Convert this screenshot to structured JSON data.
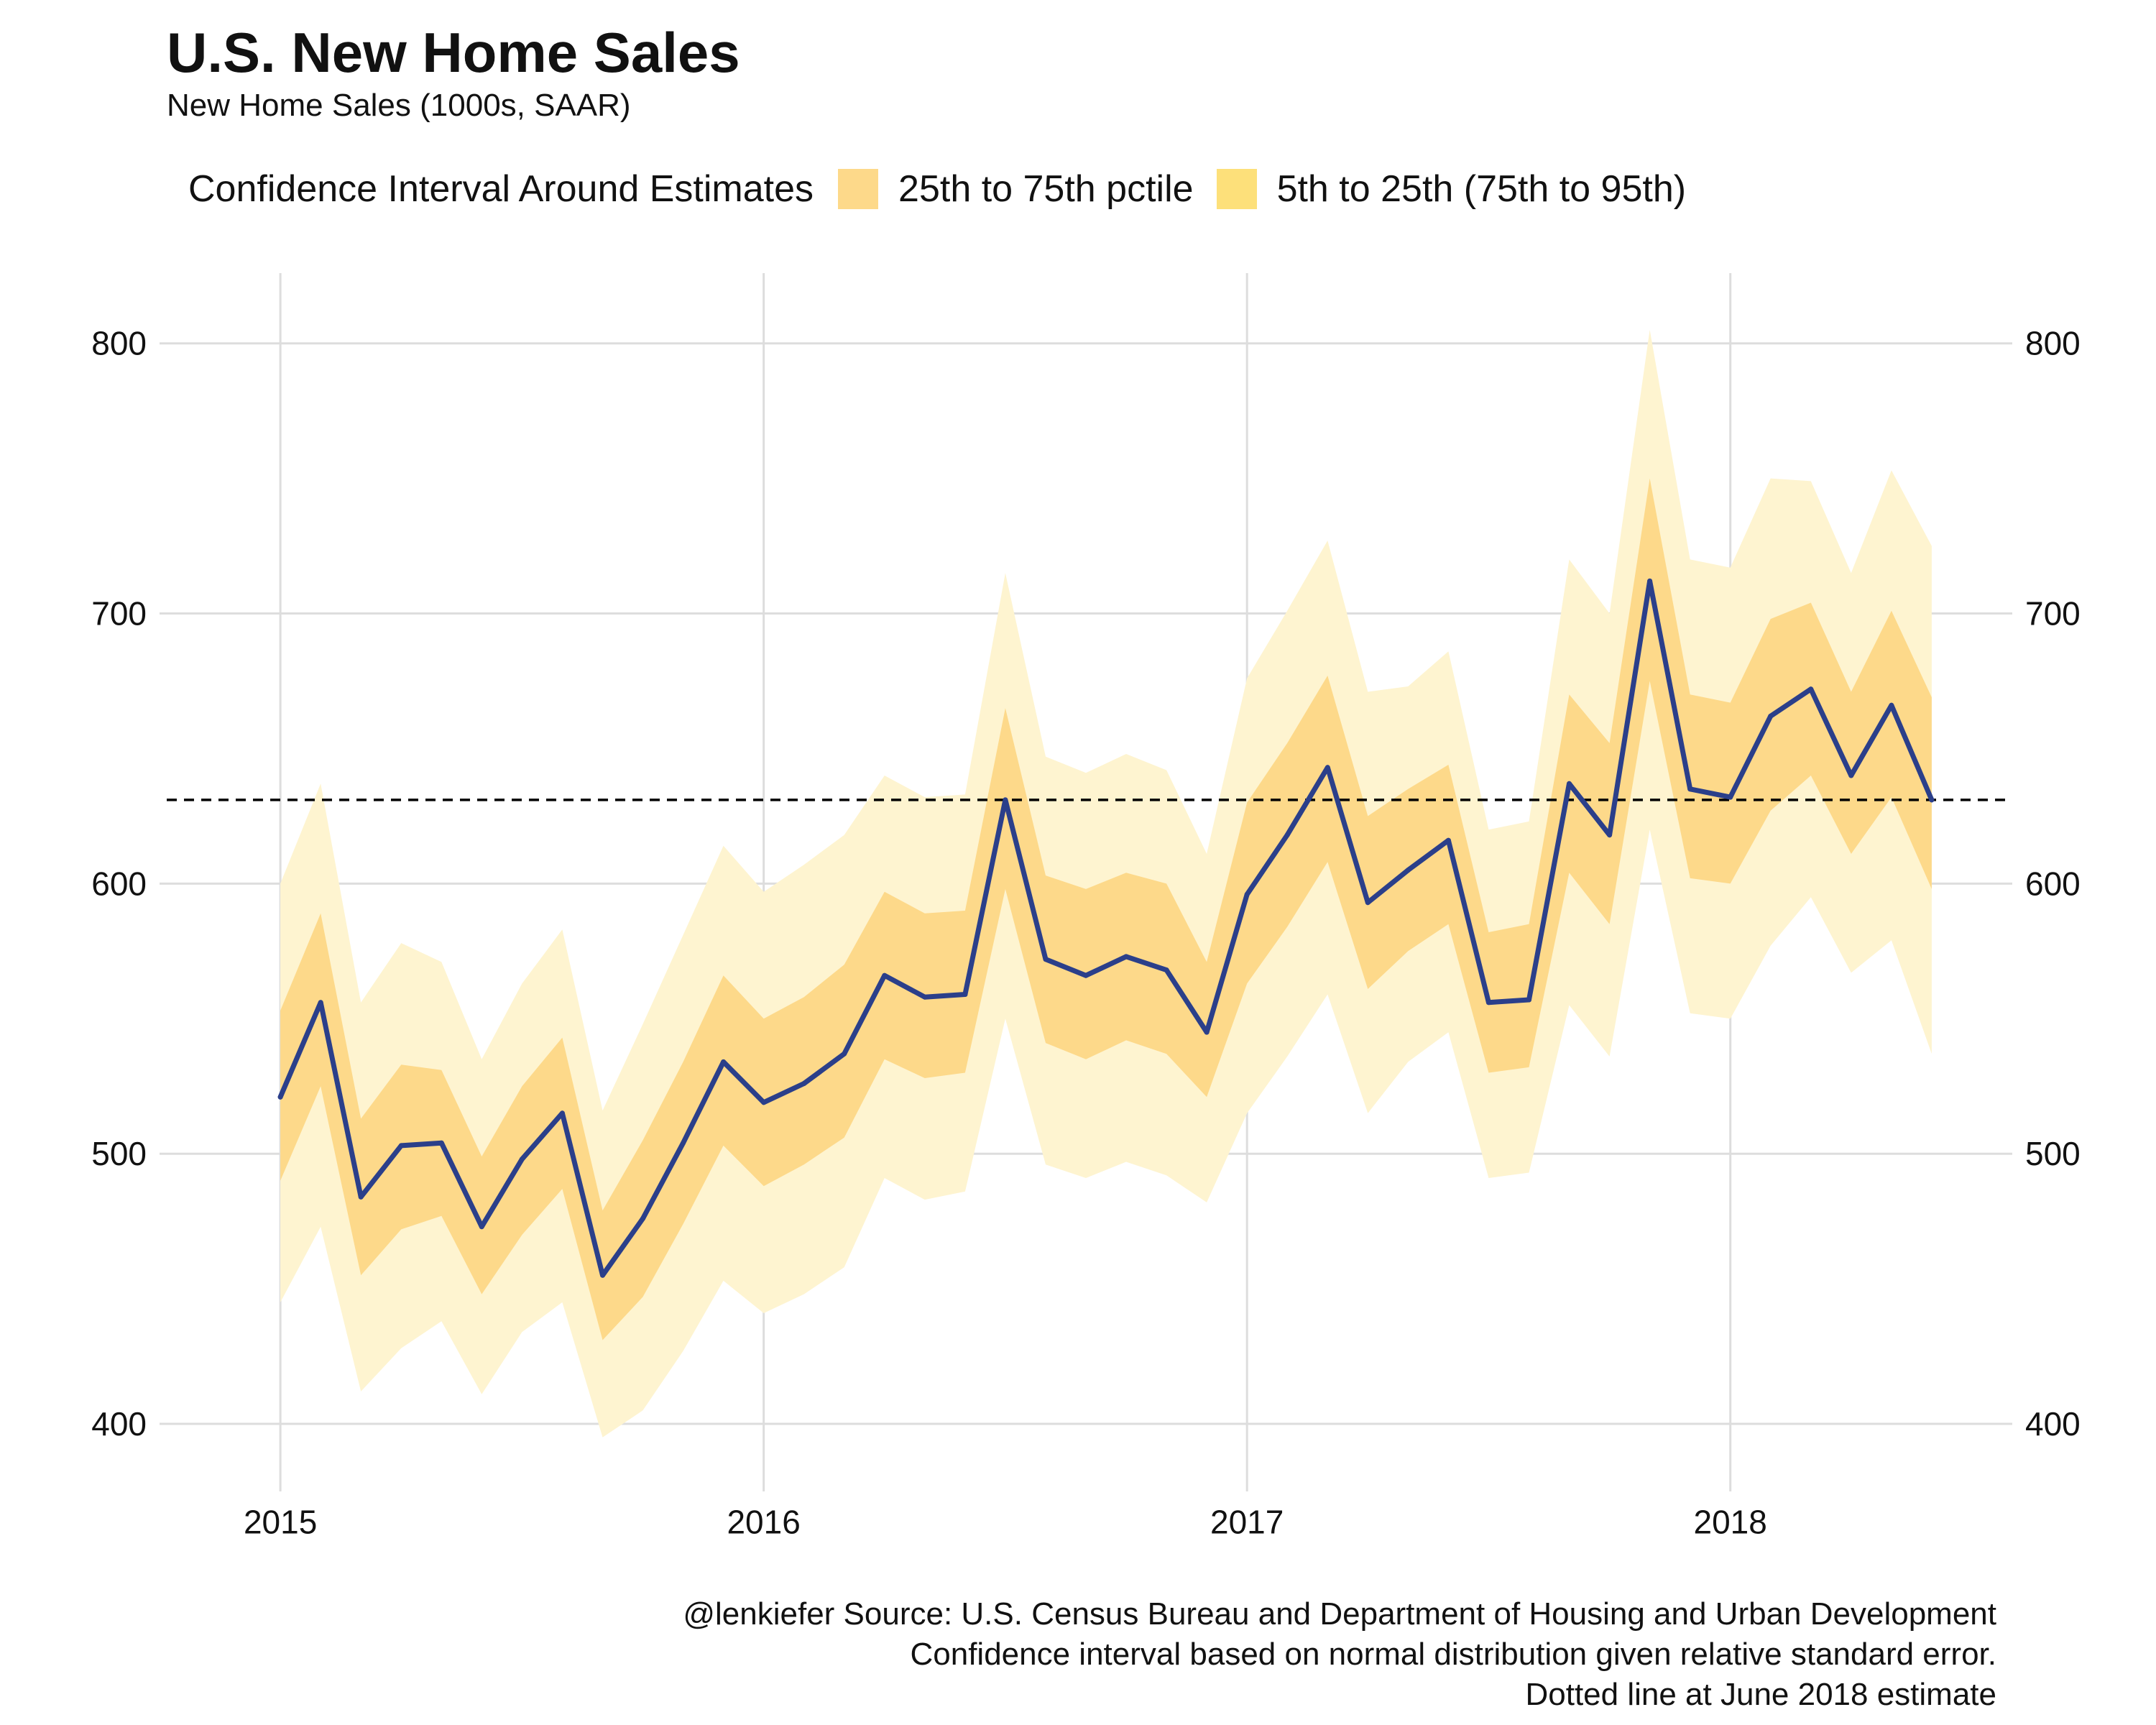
{
  "title": "U.S. New Home Sales",
  "subtitle": "New Home Sales (1000s, SAAR)",
  "legend": {
    "title": "Confidence Interval Around Estimates",
    "items": [
      {
        "label": "25th to 75th pctile",
        "color": "#fdd98a"
      },
      {
        "label": "5th to 25th (75th to 95th)",
        "color": "#fde07a"
      }
    ]
  },
  "caption": {
    "line1": "@lenkiefer Source: U.S. Census Bureau and Department of Housing and Urban Development",
    "line2": "Confidence interval based on normal distribution given relative standard error.",
    "line3": "Dotted line at June 2018 estimate"
  },
  "colors": {
    "line": "#2b3f8a",
    "inner_band": "#fdd98a",
    "outer_band": "#fef4d0",
    "grid": "#dddddd",
    "reference": "#000000"
  },
  "chart_data": {
    "type": "line",
    "x_start": "2015-01",
    "x_frequency": "monthly",
    "xlim": [
      "2014-10",
      "2018-08"
    ],
    "ylim": [
      375,
      826
    ],
    "x_ticks": [
      "2015",
      "2016",
      "2017",
      "2018"
    ],
    "y_ticks": [
      400,
      500,
      600,
      700,
      800
    ],
    "y_axis_sides": [
      "left",
      "right"
    ],
    "grid": true,
    "legend_position": "top",
    "reference_line": {
      "y": 631,
      "style": "dashed",
      "note": "June 2018 estimate"
    },
    "series": [
      {
        "name": "New Home Sales",
        "values": [
          521,
          556,
          484,
          503,
          504,
          473,
          498,
          515,
          455,
          476,
          504,
          534,
          519,
          526,
          537,
          566,
          558,
          559,
          631,
          572,
          566,
          573,
          568,
          545,
          596,
          618,
          643,
          593,
          605,
          616,
          556,
          557,
          637,
          618,
          712,
          635,
          632,
          662,
          672,
          640,
          666,
          631
        ]
      },
      {
        "name": "25th pctile",
        "values": [
          490,
          525,
          455,
          472,
          477,
          448,
          470,
          487,
          431,
          447,
          474,
          503,
          488,
          496,
          506,
          535,
          528,
          530,
          598,
          541,
          535,
          542,
          537,
          521,
          563,
          584,
          608,
          561,
          575,
          585,
          530,
          532,
          604,
          585,
          675,
          602,
          600,
          627,
          640,
          611,
          632,
          598
        ]
      },
      {
        "name": "75th pctile",
        "values": [
          553,
          589,
          513,
          533,
          531,
          499,
          525,
          543,
          479,
          505,
          534,
          566,
          550,
          558,
          570,
          597,
          589,
          590,
          665,
          603,
          598,
          604,
          600,
          571,
          630,
          652,
          677,
          625,
          635,
          644,
          582,
          585,
          670,
          652,
          750,
          670,
          667,
          698,
          704,
          671,
          701,
          669
        ]
      },
      {
        "name": "5th pctile",
        "values": [
          445,
          473,
          412,
          428,
          438,
          411,
          434,
          445,
          395,
          405,
          427,
          453,
          441,
          448,
          458,
          491,
          483,
          486,
          550,
          496,
          491,
          497,
          492,
          482,
          515,
          536,
          559,
          515,
          534,
          545,
          491,
          493,
          555,
          536,
          620,
          552,
          550,
          577,
          595,
          567,
          579,
          537
        ]
      },
      {
        "name": "95th pctile",
        "values": [
          600,
          637,
          556,
          578,
          571,
          535,
          563,
          583,
          516,
          548,
          581,
          614,
          597,
          607,
          618,
          640,
          632,
          633,
          715,
          647,
          641,
          648,
          642,
          611,
          676,
          701,
          727,
          671,
          673,
          686,
          620,
          623,
          720,
          700,
          805,
          720,
          717,
          750,
          749,
          715,
          753,
          725
        ]
      }
    ]
  }
}
